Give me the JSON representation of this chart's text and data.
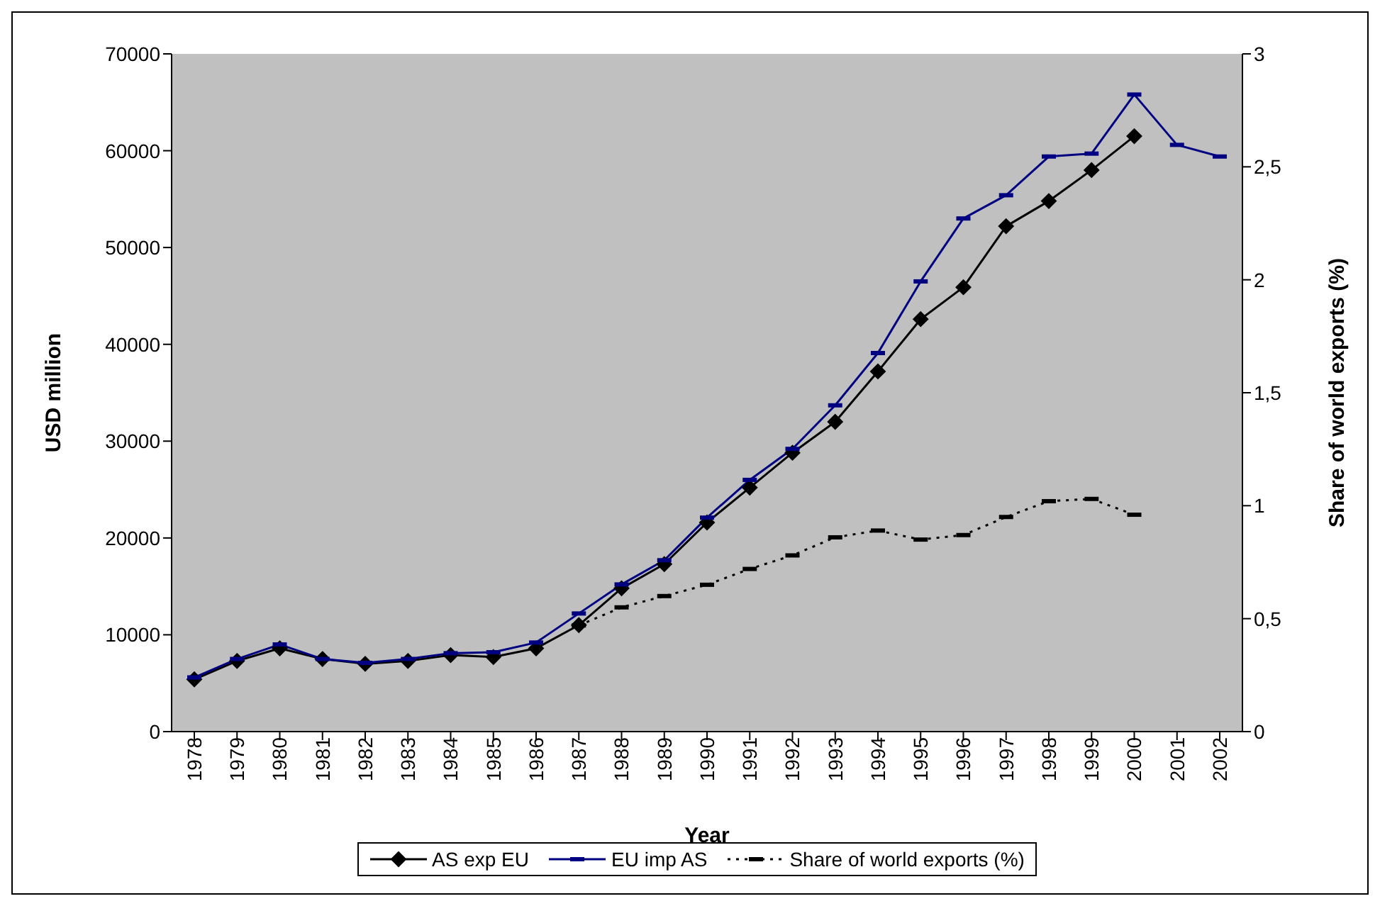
{
  "chart_data": {
    "type": "line",
    "xlabel": "Year",
    "ylabel": "USD million",
    "y2label": "Share of world exports (%)",
    "categories": [
      "1978",
      "1979",
      "1980",
      "1981",
      "1982",
      "1983",
      "1984",
      "1985",
      "1986",
      "1987",
      "1988",
      "1989",
      "1990",
      "1991",
      "1992",
      "1993",
      "1994",
      "1995",
      "1996",
      "1997",
      "1998",
      "1999",
      "2000",
      "2001",
      "2002"
    ],
    "series": [
      {
        "name": "AS exp EU",
        "color": "#000000",
        "marker": "diamond",
        "line_style": "solid",
        "values": [
          5400,
          7300,
          8600,
          7500,
          7000,
          7300,
          7900,
          7700,
          8600,
          11000,
          14800,
          17300,
          21600,
          25200,
          28800,
          32000,
          37200,
          42600,
          45900,
          52200,
          54800,
          58000,
          61500,
          null,
          null
        ]
      },
      {
        "name": "EU imp AS",
        "color": "#000080",
        "marker": "square",
        "line_style": "solid",
        "values": [
          5600,
          7500,
          9000,
          7500,
          7100,
          7500,
          8100,
          8200,
          9200,
          12200,
          15200,
          17700,
          22100,
          26000,
          29200,
          33700,
          39100,
          46500,
          53000,
          55400,
          59400,
          59700,
          65800,
          60600,
          59400
        ]
      },
      {
        "name": "Share of world exports (%)",
        "color": "#000000",
        "marker": "square",
        "line_style": "dotted",
        "axis": "y2",
        "values": [
          null,
          null,
          null,
          null,
          null,
          null,
          null,
          null,
          null,
          0.47,
          0.55,
          0.6,
          0.65,
          0.72,
          0.78,
          0.86,
          0.89,
          0.85,
          0.87,
          0.95,
          1.02,
          1.03,
          0.96,
          null,
          null
        ]
      }
    ],
    "ylim": [
      0,
      70000
    ],
    "yticks": [
      0,
      10000,
      20000,
      30000,
      40000,
      50000,
      60000,
      70000
    ],
    "y2lim": [
      0,
      3
    ],
    "y2ticks": [
      0,
      {
        "value": 0.5,
        "label": "0,5"
      },
      1,
      {
        "value": 1.5,
        "label": "1,5"
      },
      2,
      {
        "value": 2.5,
        "label": "2,5"
      },
      3
    ],
    "grid": false,
    "legend": "bottom"
  }
}
